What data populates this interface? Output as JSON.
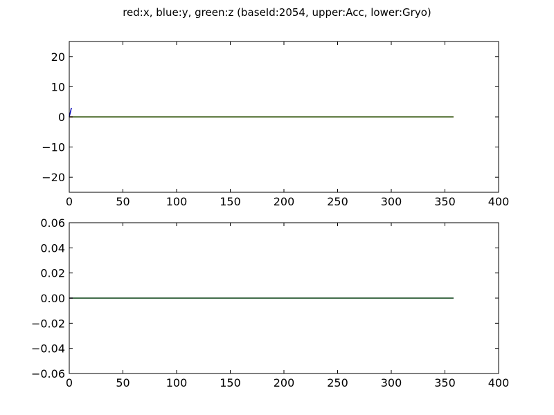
{
  "title": "red:x, blue:y, green:z (baseId:2054, upper:Acc, lower:Gryo)",
  "colors": {
    "x": "#ff0000",
    "y": "#0000b0",
    "z": "#2e7d32"
  },
  "chart_data": [
    {
      "type": "line",
      "panel": "upper",
      "xlim": [
        0,
        400
      ],
      "ylim": [
        -25,
        25
      ],
      "xticks": [
        0,
        50,
        100,
        150,
        200,
        250,
        300,
        350,
        400
      ],
      "yticks": [
        20,
        10,
        0,
        -10,
        -20
      ],
      "xtick_labels": [
        "0",
        "50",
        "100",
        "150",
        "200",
        "250",
        "300",
        "350",
        "400"
      ],
      "ytick_labels": [
        "20",
        "10",
        "0",
        "−10",
        "−20"
      ],
      "grid": false,
      "series": [
        {
          "name": "x",
          "color_key": "x",
          "x": [
            0,
            358
          ],
          "y": [
            0,
            0
          ]
        },
        {
          "name": "y",
          "color_key": "y",
          "x": [
            0,
            2
          ],
          "y": [
            0,
            3
          ]
        },
        {
          "name": "z",
          "color_key": "z",
          "x": [
            0,
            358
          ],
          "y": [
            0,
            0
          ]
        }
      ]
    },
    {
      "type": "line",
      "panel": "lower",
      "xlim": [
        0,
        400
      ],
      "ylim": [
        -0.06,
        0.06
      ],
      "xticks": [
        0,
        50,
        100,
        150,
        200,
        250,
        300,
        350,
        400
      ],
      "yticks": [
        0.06,
        0.04,
        0.02,
        0.0,
        -0.02,
        -0.04,
        -0.06
      ],
      "xtick_labels": [
        "0",
        "50",
        "100",
        "150",
        "200",
        "250",
        "300",
        "350",
        "400"
      ],
      "ytick_labels": [
        "0.06",
        "0.04",
        "0.02",
        "0.00",
        "−0.02",
        "−0.04",
        "−0.06"
      ],
      "grid": false,
      "series": [
        {
          "name": "x",
          "color_key": "x",
          "x": [
            0,
            358
          ],
          "y": [
            0,
            0
          ]
        },
        {
          "name": "y",
          "color_key": "y",
          "x": [
            0,
            358
          ],
          "y": [
            0,
            0
          ]
        },
        {
          "name": "z",
          "color_key": "z",
          "x": [
            0,
            358
          ],
          "y": [
            0,
            0
          ]
        }
      ]
    }
  ]
}
